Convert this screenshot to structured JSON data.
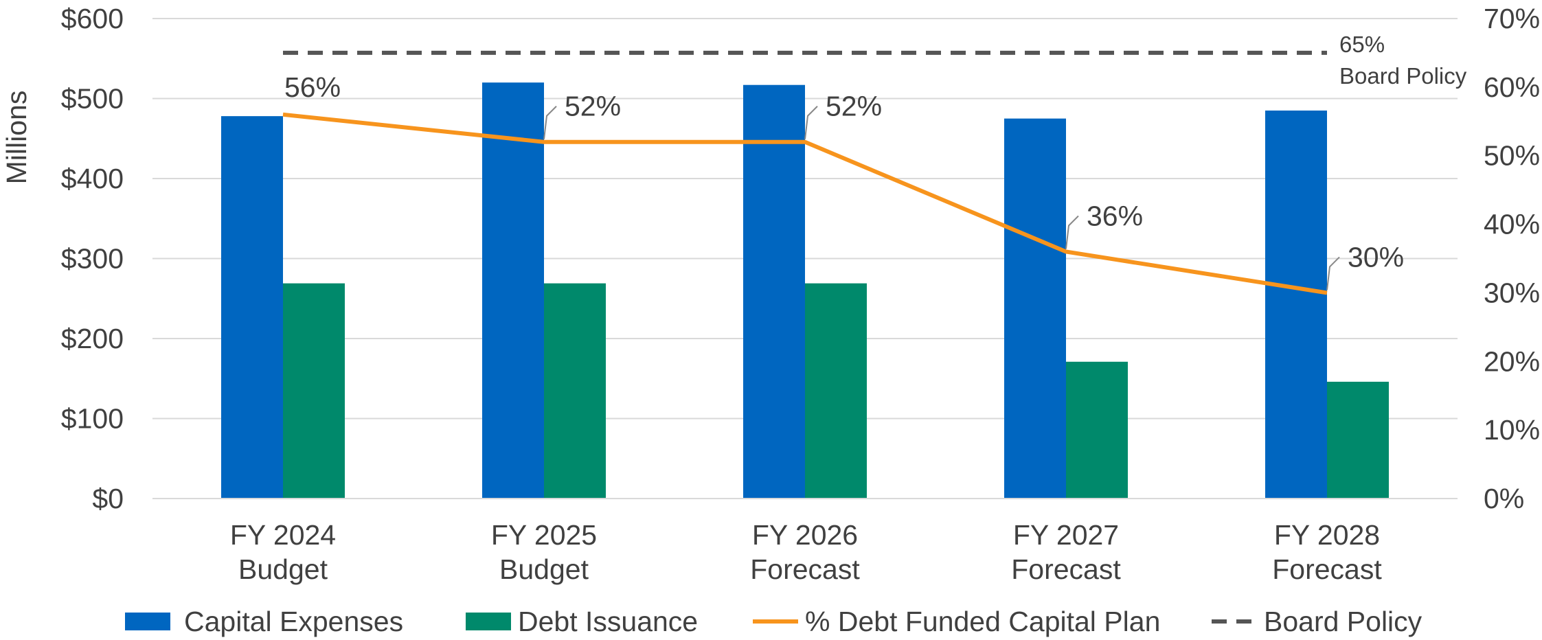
{
  "chart_data": {
    "type": "bar",
    "categories": [
      "FY 2024\nBudget",
      "FY 2025\nBudget",
      "FY 2026\nForecast",
      "FY 2027\nForecast",
      "FY 2028\nForecast"
    ],
    "y_label": "Millions",
    "ylim": [
      0,
      600
    ],
    "yticks": [
      {
        "value": 0,
        "label": "$0"
      },
      {
        "value": 100,
        "label": "$100"
      },
      {
        "value": 200,
        "label": "$200"
      },
      {
        "value": 300,
        "label": "$300"
      },
      {
        "value": 400,
        "label": "$400"
      },
      {
        "value": 500,
        "label": "$500"
      },
      {
        "value": 600,
        "label": "$600"
      }
    ],
    "y2lim": [
      0,
      70
    ],
    "y2ticks": [
      {
        "value": 0,
        "label": "0%"
      },
      {
        "value": 10,
        "label": "10%"
      },
      {
        "value": 20,
        "label": "20%"
      },
      {
        "value": 30,
        "label": "30%"
      },
      {
        "value": 40,
        "label": "40%"
      },
      {
        "value": 50,
        "label": "50%"
      },
      {
        "value": 60,
        "label": "60%"
      },
      {
        "value": 70,
        "label": "70%"
      }
    ],
    "grid": true,
    "legend": "bottom",
    "series": [
      {
        "name": "Capital Expenses",
        "type": "bar",
        "color": "#0066c0",
        "values": [
          478,
          520,
          517,
          475,
          485
        ]
      },
      {
        "name": "Debt Issuance",
        "type": "bar",
        "color": "#00896b",
        "values": [
          269,
          269,
          269,
          171,
          146
        ]
      },
      {
        "name": "% Debt Funded Capital Plan",
        "type": "line",
        "axis": "y2",
        "color": "#f7941d",
        "values": [
          56,
          52,
          52,
          36,
          30
        ],
        "value_labels": [
          "56%",
          "52%",
          "52%",
          "36%",
          "30%"
        ]
      },
      {
        "name": "Board Policy",
        "type": "dashed",
        "axis": "y2",
        "color": "#555555",
        "values": [
          65,
          65,
          65,
          65,
          65
        ],
        "value_labels": [
          null,
          null,
          null,
          null,
          "65%"
        ],
        "annotation": "Board Policy"
      }
    ]
  }
}
